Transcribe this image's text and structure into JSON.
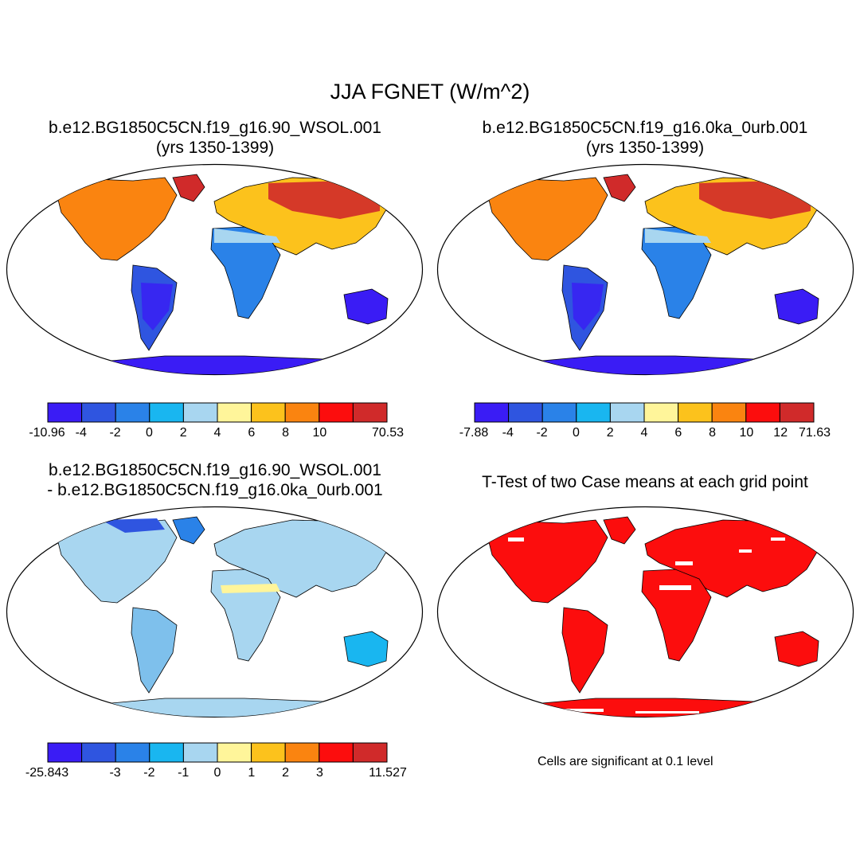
{
  "main_title": "JJA FGNET (W/m^2)",
  "panels": [
    {
      "title_lines": [
        "b.e12.BG1850C5CN.f19_g16.90_WSOL.001",
        "(yrs 1350-1399)"
      ],
      "colorbar": {
        "colors": [
          "#3a1cf5",
          "#2f55e0",
          "#2a82e8",
          "#19b6f0",
          "#a8d6f0",
          "#fff59a",
          "#fcc21c",
          "#fa8410",
          "#fc0d0d",
          "#d02a2a"
        ],
        "labels": [
          "-10.96",
          "-4",
          "-2",
          "0",
          "2",
          "4",
          "6",
          "8",
          "10",
          "",
          "70.53"
        ]
      }
    },
    {
      "title_lines": [
        "b.e12.BG1850C5CN.f19_g16.0ka_0urb.001",
        "(yrs 1350-1399)"
      ],
      "colorbar": {
        "colors": [
          "#3a1cf5",
          "#2f55e0",
          "#2a82e8",
          "#19b6f0",
          "#a8d6f0",
          "#fff59a",
          "#fcc21c",
          "#fa8410",
          "#fc0d0d",
          "#d02a2a"
        ],
        "labels": [
          "-7.88",
          "-4",
          "-2",
          "0",
          "2",
          "4",
          "6",
          "8",
          "10",
          "12",
          "71.63"
        ]
      }
    },
    {
      "title_lines": [
        "b.e12.BG1850C5CN.f19_g16.90_WSOL.001",
        "- b.e12.BG1850C5CN.f19_g16.0ka_0urb.001"
      ],
      "colorbar": {
        "colors": [
          "#3a1cf5",
          "#2f55e0",
          "#2a82e8",
          "#19b6f0",
          "#a8d6f0",
          "#fff59a",
          "#fcc21c",
          "#fa8410",
          "#fc0d0d",
          "#d02a2a"
        ],
        "labels": [
          "-25.843",
          "",
          "-3",
          "-2",
          "-1",
          "0",
          "1",
          "2",
          "3",
          "",
          "11.527"
        ]
      }
    },
    {
      "title_lines": [
        "T-Test of two Case means at each grid point"
      ],
      "note": "Cells are significant at 0.1 level"
    }
  ]
}
